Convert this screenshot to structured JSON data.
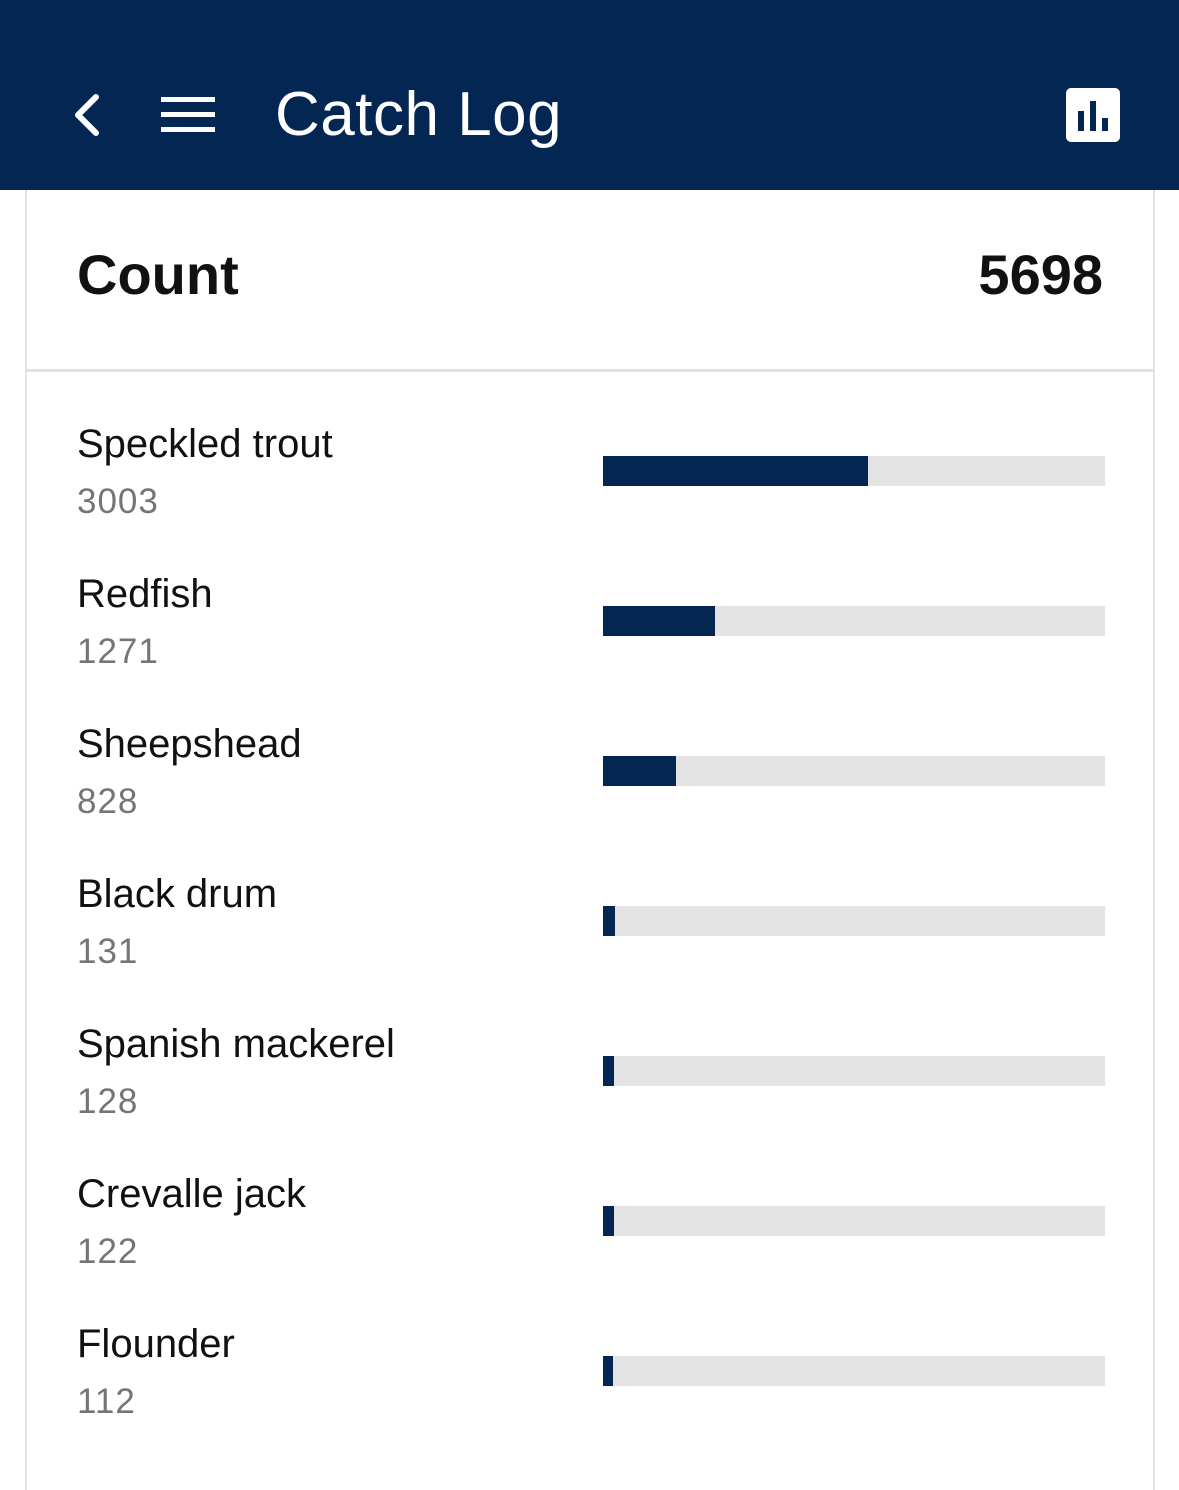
{
  "appbar": {
    "title": "Catch Log",
    "back_icon": "chevron-left-icon",
    "menu_icon": "hamburger-menu-icon",
    "chart_icon": "bar-chart-icon",
    "color": "#032652"
  },
  "summary": {
    "label": "Count",
    "total": "5698"
  },
  "species": [
    {
      "name": "Speckled trout",
      "count": "3003",
      "fraction": 0.527
    },
    {
      "name": "Redfish",
      "count": "1271",
      "fraction": 0.223
    },
    {
      "name": "Sheepshead",
      "count": "828",
      "fraction": 0.145
    },
    {
      "name": "Black drum",
      "count": "131",
      "fraction": 0.023
    },
    {
      "name": "Spanish mackerel",
      "count": "128",
      "fraction": 0.022
    },
    {
      "name": "Crevalle jack",
      "count": "122",
      "fraction": 0.021
    },
    {
      "name": "Flounder",
      "count": "112",
      "fraction": 0.02
    }
  ],
  "colors": {
    "bar_fill": "#032652",
    "bar_track": "#e3e3e3",
    "secondary_text": "#757575"
  }
}
